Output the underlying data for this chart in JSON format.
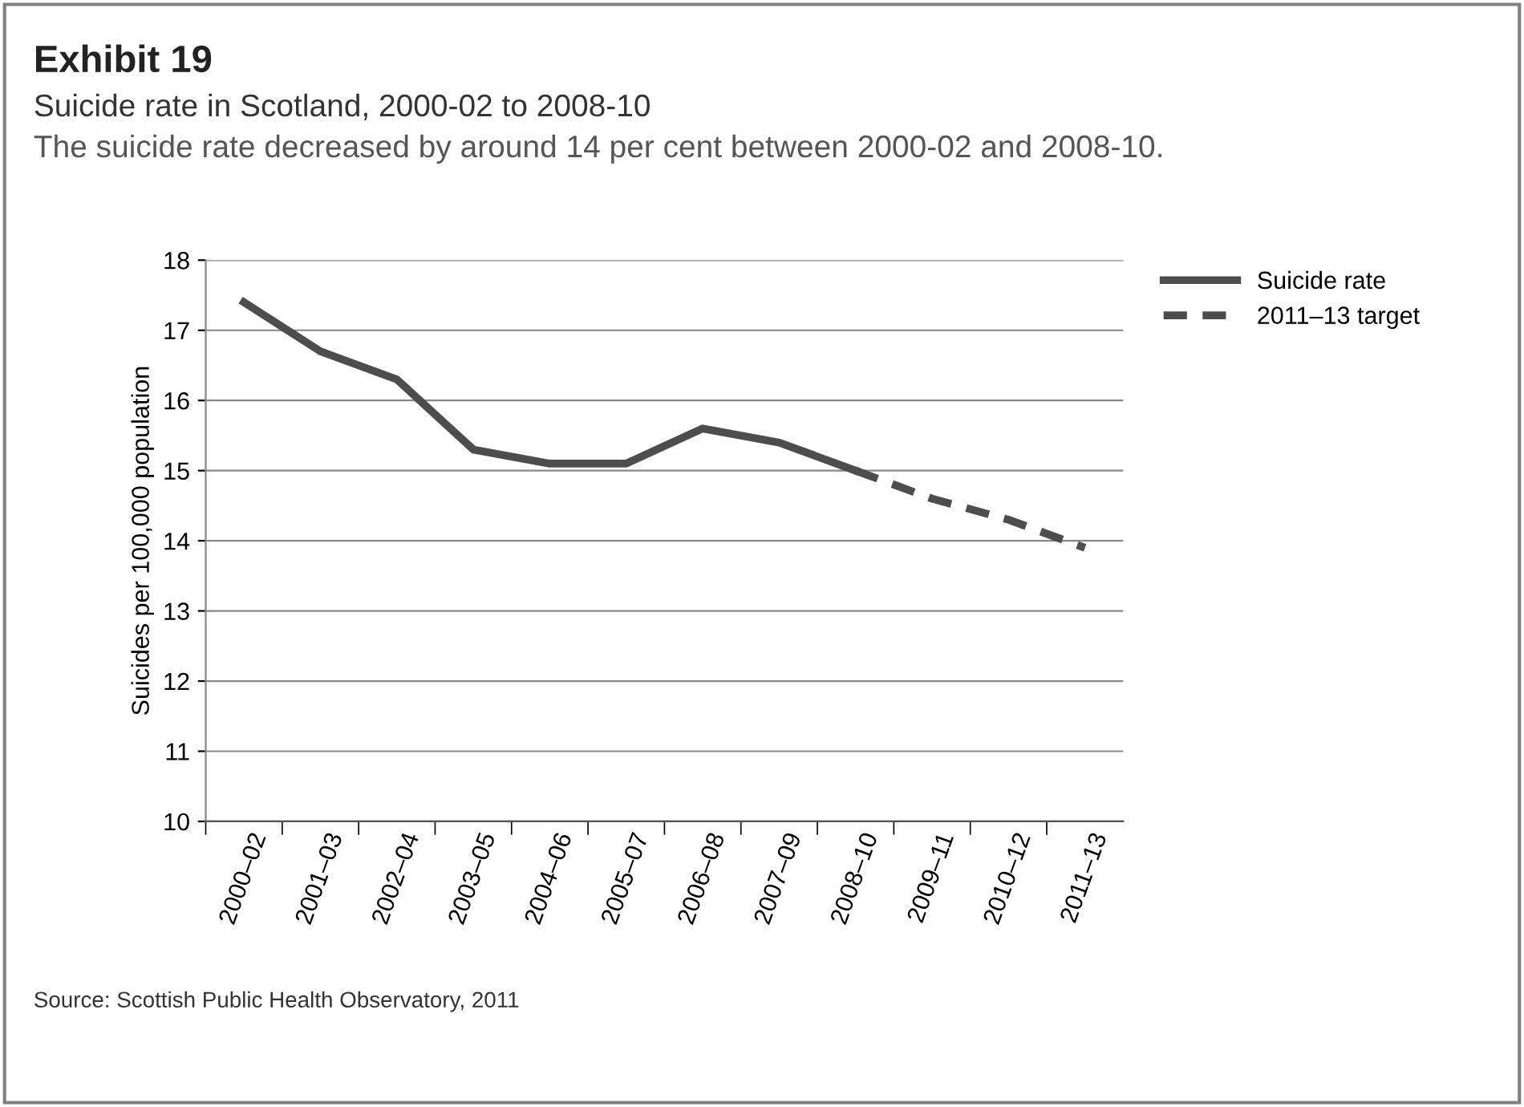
{
  "chart_data": {
    "type": "line",
    "title": "Exhibit 19",
    "subtitle": "Suicide rate in Scotland, 2000-02 to 2008-10",
    "annotations": [
      "The suicide rate decreased by around 14 per cent between 2000-02 and 2008-10.",
      "Source: Scottish Public Health Observatory, 2011"
    ],
    "ylabel": "Suicides per 100,000 population",
    "categories": [
      "2000–02",
      "2001–03",
      "2002–04",
      "2003–05",
      "2004–06",
      "2005–07",
      "2006–08",
      "2007–09",
      "2008–10",
      "2009–11",
      "2010–12",
      "2011–13"
    ],
    "series": [
      {
        "name": "Suicide rate",
        "color": "#4d4d4d",
        "line_style": "solid",
        "values": [
          17.4,
          16.7,
          16.3,
          15.3,
          15.1,
          15.1,
          15.6,
          15.4,
          15.0,
          null,
          null,
          null
        ]
      },
      {
        "name": "2011–13 target",
        "color": "#4d4d4d",
        "line_style": "dashed",
        "values": [
          null,
          null,
          null,
          null,
          null,
          null,
          null,
          null,
          15.0,
          14.6,
          14.3,
          13.9
        ]
      }
    ],
    "ylim": [
      10,
      18
    ],
    "yticks": [
      10,
      11,
      12,
      13,
      14,
      15,
      16,
      17,
      18
    ],
    "grid": "y",
    "legend": "top right",
    "marker": "none"
  }
}
